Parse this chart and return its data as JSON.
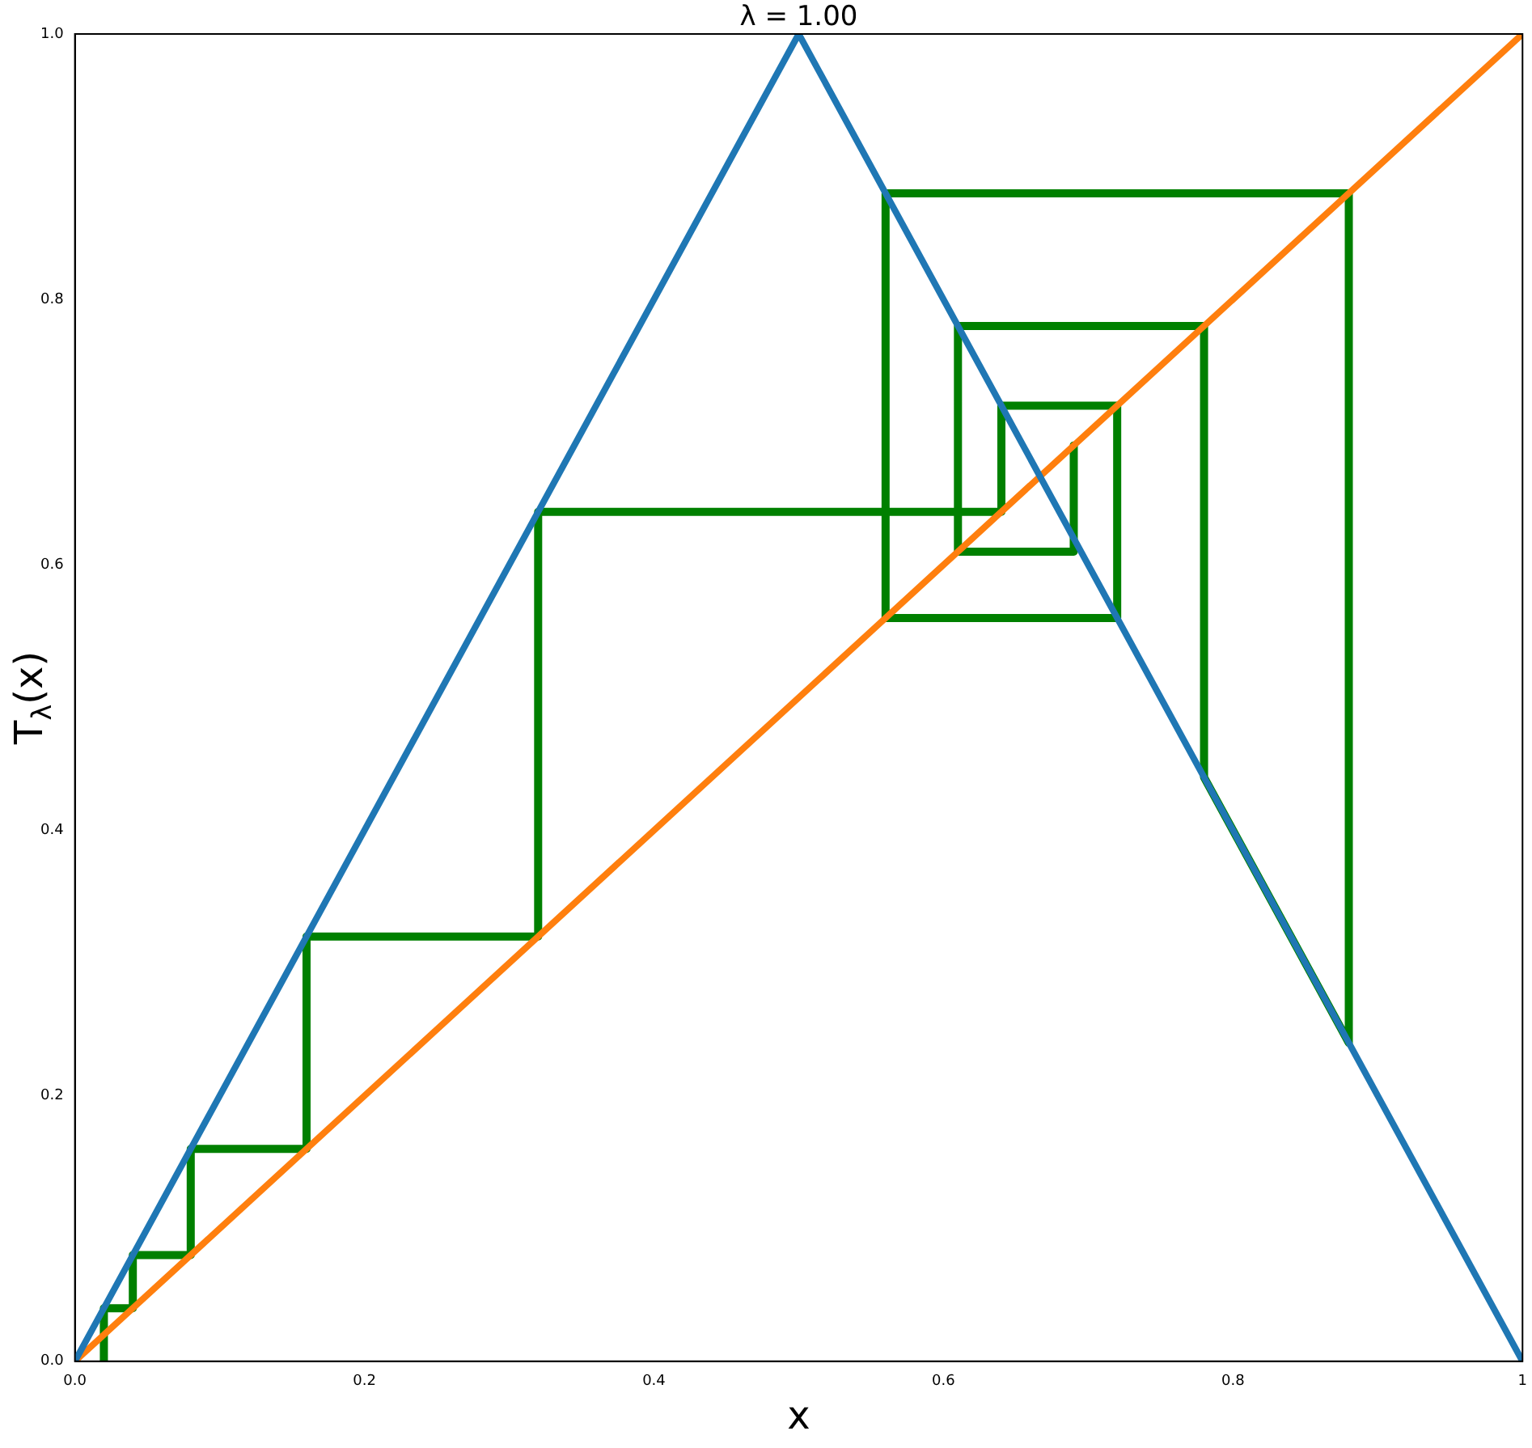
{
  "chart_data": {
    "type": "line",
    "title": "λ = 1.00",
    "xlabel": "x",
    "ylabel": "T$_{λ}$(x)",
    "xlim": [
      0,
      1
    ],
    "ylim": [
      0,
      1
    ],
    "xticks": [
      {
        "value": 0,
        "label": "0.0"
      },
      {
        "value": 0.2,
        "label": "0.2"
      },
      {
        "value": 0.4,
        "label": "0.4"
      },
      {
        "value": 0.6,
        "label": "0.6"
      },
      {
        "value": 0.8,
        "label": "0.8"
      },
      {
        "value": 1,
        "label": "1"
      }
    ],
    "yticks": [
      {
        "value": 0,
        "label": "0.0"
      },
      {
        "value": 0.2,
        "label": "0.2"
      },
      {
        "value": 0.4,
        "label": "0.4"
      },
      {
        "value": 0.6,
        "label": "0.6"
      },
      {
        "value": 0.8,
        "label": "0.8"
      },
      {
        "value": 1,
        "label": "1.0"
      }
    ],
    "grid": false,
    "legend": false,
    "marker": "none",
    "line_style": "solid",
    "series": [
      {
        "color": "#1f77b4",
        "x": [
          0,
          0.5,
          1
        ],
        "values": [
          0,
          1,
          0
        ]
      },
      {
        "color": "#ff7f0e",
        "x": [
          0,
          1
        ],
        "values": [
          0,
          1
        ]
      },
      {
        "color": "#008000",
        "x": [
          0.02,
          0.02,
          0.04,
          0.04,
          0.08,
          0.08,
          0.16,
          0.16,
          0.32,
          0.32,
          0.64,
          0.64,
          0.72,
          0.72,
          0.56,
          0.56,
          0.88,
          0.88,
          0.78,
          0.78,
          0.61,
          0.61,
          0.69,
          0.69
        ],
        "values": [
          0,
          0.04,
          0.04,
          0.08,
          0.08,
          0.16,
          0.16,
          0.32,
          0.32,
          0.64,
          0.64,
          0.72,
          0.72,
          0.56,
          0.56,
          0.88,
          0.88,
          0.24,
          0.44,
          0.78,
          0.78,
          0.61,
          0.61,
          0.69
        ]
      }
    ]
  }
}
